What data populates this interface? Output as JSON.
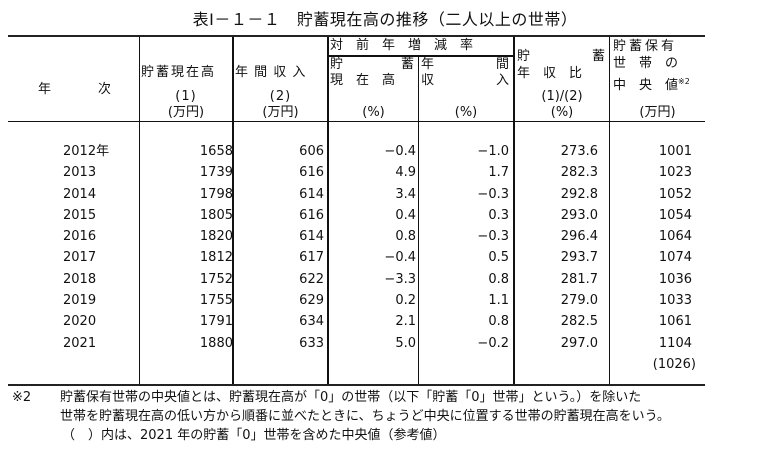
{
  "title": "表Ⅰ－１－１　貯蓄現在高の推移（二人以上の世帯）",
  "header": {
    "year": "年　　　次",
    "savings": {
      "label": "貯蓄現在高",
      "num": "(1)",
      "unit": "(万円)"
    },
    "income": {
      "label": "年 間 収 入",
      "num": "(2)",
      "unit": "(万円)"
    },
    "yoy_group": "対　前　年　増　減　率",
    "yoy_savings": {
      "line1_left": "貯",
      "line1_right": "蓄",
      "line2": "現　在　高",
      "unit": "(%)"
    },
    "yoy_income": {
      "line1_left": "年",
      "line1_right": "間",
      "line2_left": "収",
      "line2_right": "入",
      "unit": "(%)"
    },
    "ratio": {
      "line1_left": "貯",
      "line1_right": "蓄",
      "line2": "年　収　比",
      "num": "(1)/(2)",
      "unit": "(%)"
    },
    "median": {
      "line1": "貯蓄保有",
      "line2": "世　帯　の",
      "line3": "中　央　値",
      "sup": "※2",
      "unit": "(万円)"
    }
  },
  "rows": [
    {
      "year": "2012年",
      "savings": "1658",
      "income": "606",
      "yoy_savings": "−0.4",
      "yoy_income": "−1.0",
      "ratio": "273.6",
      "median": "1001"
    },
    {
      "year": "2013",
      "savings": "1739",
      "income": "616",
      "yoy_savings": "4.9",
      "yoy_income": "1.7",
      "ratio": "282.3",
      "median": "1023"
    },
    {
      "year": "2014",
      "savings": "1798",
      "income": "614",
      "yoy_savings": "3.4",
      "yoy_income": "−0.3",
      "ratio": "292.8",
      "median": "1052"
    },
    {
      "year": "2015",
      "savings": "1805",
      "income": "616",
      "yoy_savings": "0.4",
      "yoy_income": "0.3",
      "ratio": "293.0",
      "median": "1054"
    },
    {
      "year": "2016",
      "savings": "1820",
      "income": "614",
      "yoy_savings": "0.8",
      "yoy_income": "−0.3",
      "ratio": "296.4",
      "median": "1064"
    },
    {
      "year": "2017",
      "savings": "1812",
      "income": "617",
      "yoy_savings": "−0.4",
      "yoy_income": "0.5",
      "ratio": "293.7",
      "median": "1074"
    },
    {
      "year": "2018",
      "savings": "1752",
      "income": "622",
      "yoy_savings": "−3.3",
      "yoy_income": "0.8",
      "ratio": "281.7",
      "median": "1036"
    },
    {
      "year": "2019",
      "savings": "1755",
      "income": "629",
      "yoy_savings": "0.2",
      "yoy_income": "1.1",
      "ratio": "279.0",
      "median": "1033"
    },
    {
      "year": "2020",
      "savings": "1791",
      "income": "634",
      "yoy_savings": "2.1",
      "yoy_income": "0.8",
      "ratio": "282.5",
      "median": "1061"
    },
    {
      "year": "2021",
      "savings": "1880",
      "income": "633",
      "yoy_savings": "5.0",
      "yoy_income": "−0.2",
      "ratio": "297.0",
      "median": "1104"
    }
  ],
  "extra_median": "(1026)",
  "notes": {
    "mark": "※2",
    "line1": "貯蓄保有世帯の中央値とは、貯蓄現在高が「0」の世帯（以下「貯蓄「0」世帯」という。）を除いた",
    "line2": "世帯を貯蓄現在高の低い方から順番に並べたときに、ちょうど中央に位置する世帯の貯蓄現在高をいう。",
    "line3": "（　）内は、2021 年の貯蓄「0」世帯を含めた中央値（参考値）"
  }
}
